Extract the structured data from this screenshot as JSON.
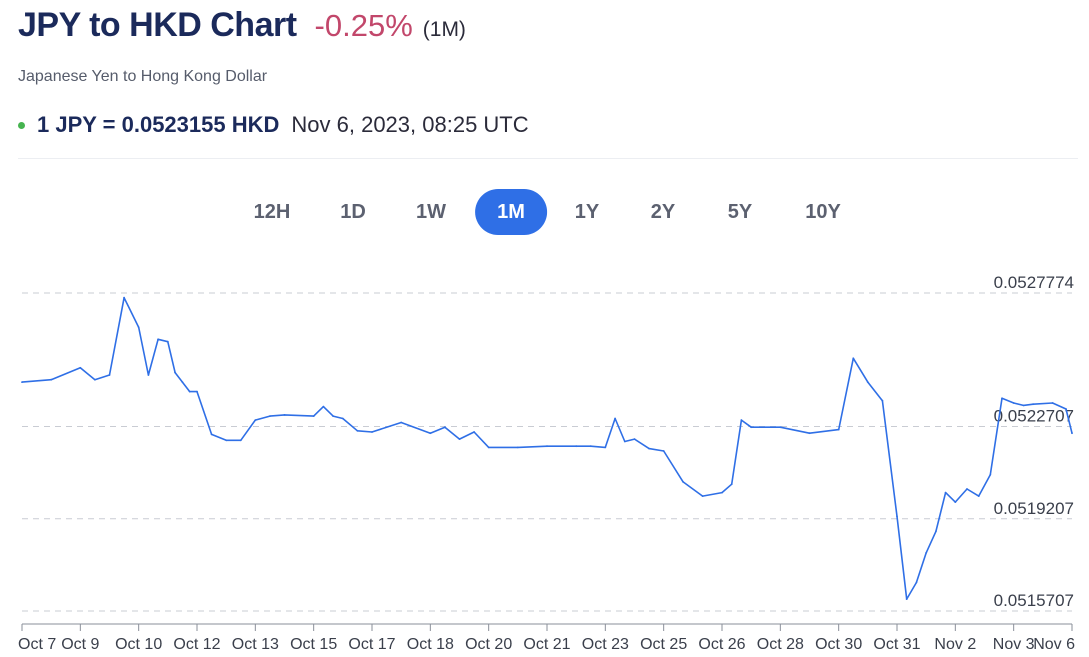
{
  "header": {
    "title": "JPY to HKD Chart",
    "change": "-0.25%",
    "period": "(1M)",
    "subtitle": "Japanese Yen to Hong Kong Dollar",
    "rate": "1 JPY = 0.0523155 HKD",
    "timestamp": "Nov 6, 2023, 08:25 UTC"
  },
  "tabs": [
    {
      "label": "12H",
      "active": false
    },
    {
      "label": "1D",
      "active": false
    },
    {
      "label": "1W",
      "active": false
    },
    {
      "label": "1M",
      "active": true
    },
    {
      "label": "1Y",
      "active": false
    },
    {
      "label": "2Y",
      "active": false
    },
    {
      "label": "5Y",
      "active": false
    },
    {
      "label": "10Y",
      "active": false
    }
  ],
  "chart_data": {
    "type": "line",
    "line_color": "#2f6fe6",
    "ylim": [
      0.0515707,
      0.0527774
    ],
    "y_ticks": [
      "0.0527774",
      "0.0522707",
      "0.0519207",
      "0.0515707"
    ],
    "x_ticks": [
      "Oct 7",
      "Oct 9",
      "Oct 10",
      "Oct 12",
      "Oct 13",
      "Oct 15",
      "Oct 17",
      "Oct 18",
      "Oct 20",
      "Oct 21",
      "Oct 23",
      "Oct 25",
      "Oct 26",
      "Oct 28",
      "Oct 30",
      "Oct 31",
      "Nov 2",
      "Nov 3",
      "Nov 6"
    ],
    "grid": "horizontal dashed",
    "series": [
      {
        "x": [
          "Oct 7",
          "Oct 8",
          "Oct 9",
          "Oct 9",
          "Oct 9",
          "Oct 9",
          "Oct 10",
          "Oct 10",
          "Oct 10",
          "Oct 11",
          "Oct 11",
          "Oct 11",
          "Oct 11",
          "Oct 12",
          "Oct 12",
          "Oct 12",
          "Oct 12",
          "Oct 13",
          "Oct 13",
          "Oct 14",
          "Oct 15",
          "Oct 15",
          "Oct 15",
          "Oct 16",
          "Oct 16",
          "Oct 17",
          "Oct 17",
          "Oct 18",
          "Oct 18",
          "Oct 19",
          "Oct 19",
          "Oct 20",
          "Oct 20",
          "Oct 21",
          "Oct 22",
          "Oct 22",
          "Oct 23",
          "Oct 23",
          "Oct 23",
          "Oct 24",
          "Oct 24",
          "Oct 25",
          "Oct 25",
          "Oct 25",
          "Oct 26",
          "Oct 26",
          "Oct 26",
          "Oct 27",
          "Oct 28",
          "Oct 29",
          "Oct 30",
          "Oct 30",
          "Oct 30",
          "Oct 30",
          "Oct 31",
          "Oct 31",
          "Oct 31",
          "Nov 1",
          "Nov 1",
          "Nov 1",
          "Nov 2",
          "Nov 2",
          "Nov 2",
          "Nov 2",
          "Nov 2",
          "Nov 3",
          "Nov 3",
          "Nov 4",
          "Nov 5",
          "Nov 6",
          "Nov 6"
        ],
        "values": [
          0.0524393,
          0.0524483,
          0.0524934,
          0.0524483,
          0.0524664,
          0.0527594,
          0.0526467,
          0.0524664,
          0.0526016,
          0.0525926,
          0.0524754,
          0.0524393,
          0.0524032,
          0.0524032,
          0.052241,
          0.0522185,
          0.0522185,
          0.052295,
          0.0523104,
          0.0523148,
          0.0523104,
          0.0523464,
          0.0523104,
          0.0523013,
          0.0522545,
          0.05225,
          0.052286,
          0.0522455,
          0.052268,
          0.052223,
          0.05225,
          0.0521914,
          0.0521914,
          0.0521959,
          0.0521959,
          0.0521959,
          0.0521914,
          0.0523013,
          0.0522139,
          0.052223,
          0.0521869,
          0.0521779,
          0.0520607,
          0.0520066,
          0.0520201,
          0.0520517,
          0.052295,
          0.052268,
          0.052268,
          0.0522455,
          0.052259,
          0.0525295,
          0.0524393,
          0.0523689,
          0.0519297,
          0.0516158,
          0.0516789,
          0.0517916,
          0.0518728,
          0.0520201,
          0.0519838,
          0.0520337,
          0.0520066,
          0.0520877,
          0.0523779,
          0.0523599,
          0.0523508,
          0.0523554,
          0.0523599,
          0.0523373,
          0.0522455
        ]
      }
    ]
  }
}
